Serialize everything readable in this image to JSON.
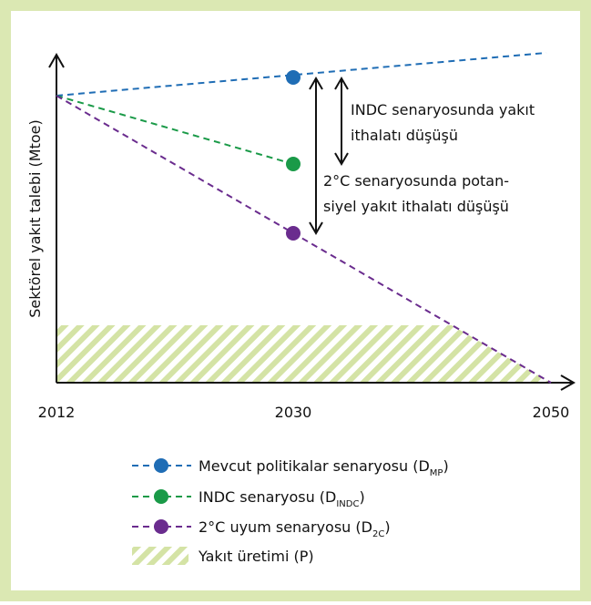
{
  "y_axis_label": "Sektörel yakıt talebi (Mtoe)",
  "x_labels": [
    "2012",
    "2030",
    "2050"
  ],
  "annotations": [
    {
      "lines": [
        "INDC senaryosunda yakıt",
        "ithalatı düşüşü"
      ]
    },
    {
      "lines": [
        "2°C senaryosunda potan-",
        "siyel yakıt ithalatı düşüşü"
      ]
    }
  ],
  "legend": [
    {
      "label": " Mevcut politikalar senaryosu (D",
      "sub": "MP",
      "end": ")"
    },
    {
      "label": "INDC senaryosu (D",
      "sub": "INDC",
      "end": ")"
    },
    {
      "label": "2°C uyum senaryosu (D",
      "sub": "2C",
      "end": ")"
    },
    {
      "label": "Yakıt üretimi (P)"
    }
  ]
}
